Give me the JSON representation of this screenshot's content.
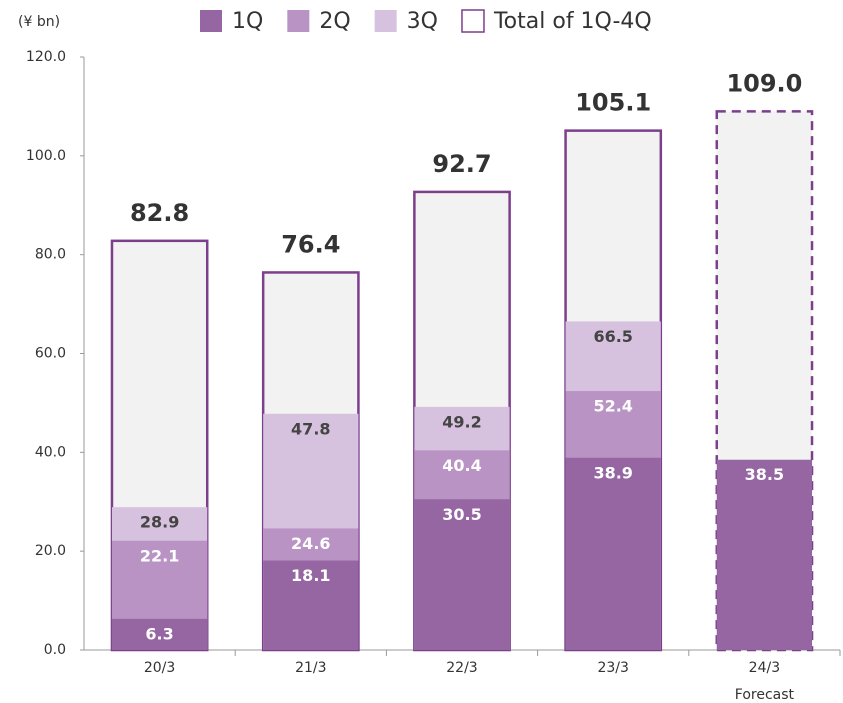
{
  "chart_data": {
    "type": "bar",
    "y_label": "(¥ bn)",
    "categories": [
      "20/3",
      "21/3",
      "22/3",
      "23/3",
      "24/3"
    ],
    "annotation": {
      "text": "Forecast",
      "category": "24/3"
    },
    "series": [
      {
        "name": "Total of 1Q-4Q",
        "color": "#f2f2f2",
        "stroke": "#7b3f8c",
        "values": [
          82.8,
          76.4,
          92.7,
          105.1,
          109.0
        ],
        "value_labels": [
          "82.8",
          "76.4",
          "92.7",
          "105.1",
          "109.0"
        ]
      },
      {
        "name": "3Q",
        "color": "#d6c1de",
        "values": [
          28.9,
          47.8,
          49.2,
          66.5,
          null
        ]
      },
      {
        "name": "2Q",
        "color": "#b893c4",
        "values": [
          22.1,
          24.6,
          40.4,
          52.4,
          null
        ]
      },
      {
        "name": "1Q",
        "color": "#9566a2",
        "values": [
          6.3,
          18.1,
          30.5,
          38.9,
          38.5
        ]
      }
    ],
    "ylim": [
      0,
      120
    ],
    "yticks": [
      {
        "value": 0,
        "label": "0.0"
      },
      {
        "value": 20,
        "label": "20.0"
      },
      {
        "value": 40,
        "label": "40.0"
      },
      {
        "value": 60,
        "label": "60.0"
      },
      {
        "value": 80,
        "label": "80.0"
      },
      {
        "value": 100,
        "label": "100.0"
      },
      {
        "value": 120,
        "label": "120.0"
      }
    ]
  }
}
